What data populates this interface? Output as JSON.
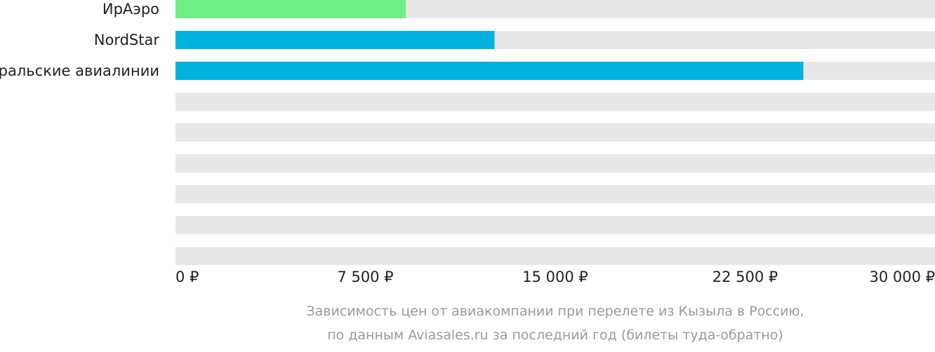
{
  "chart_data": {
    "type": "bar",
    "orientation": "horizontal",
    "categories": [
      "ИрАэро",
      "NordStar",
      "Уральские авиалинии",
      "",
      "",
      "",
      "",
      "",
      ""
    ],
    "values": [
      9100,
      12600,
      24800,
      null,
      null,
      null,
      null,
      null,
      null
    ],
    "bar_colors": [
      "#6ef084",
      "#00b2de",
      "#00b2de",
      null,
      null,
      null,
      null,
      null,
      null
    ],
    "track_color": "#e8e8e8",
    "xlim": [
      0,
      30000
    ],
    "x_ticks": [
      0,
      7500,
      15000,
      22500,
      30000
    ],
    "x_tick_labels": [
      "0 ₽",
      "7 500 ₽",
      "15 000 ₽",
      "22 500 ₽",
      "30 000 ₽"
    ],
    "grid": false,
    "title": "",
    "xlabel": "",
    "ylabel": ""
  },
  "caption": {
    "line1": "Зависимость цен от авиакомпании при перелете из Кызыла в Россию,",
    "line2": "по данным Aviasales.ru за последний год (билеты туда-обратно)"
  }
}
